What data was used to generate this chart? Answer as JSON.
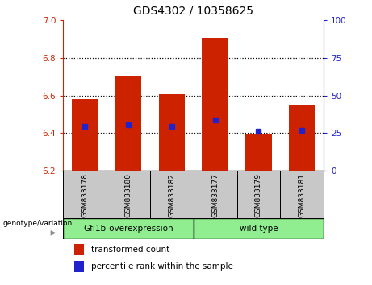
{
  "title": "GDS4302 / 10358625",
  "samples": [
    "GSM833178",
    "GSM833180",
    "GSM833182",
    "GSM833177",
    "GSM833179",
    "GSM833181"
  ],
  "bar_bottom": 6.2,
  "bar_tops": [
    6.58,
    6.7,
    6.605,
    6.905,
    6.395,
    6.545
  ],
  "percentile_values_left": [
    6.435,
    6.445,
    6.435,
    6.47,
    6.41,
    6.415
  ],
  "ylim_left": [
    6.2,
    7.0
  ],
  "ylim_right": [
    0,
    100
  ],
  "yticks_left": [
    6.2,
    6.4,
    6.6,
    6.8,
    7.0
  ],
  "yticks_right": [
    0,
    25,
    50,
    75,
    100
  ],
  "bar_color": "#cc2200",
  "dot_color": "#2222cc",
  "group1_color": "#90ee90",
  "group2_color": "#90ee90",
  "label_bg_color": "#c8c8c8",
  "bar_width": 0.6,
  "grid_color": "#000000",
  "plot_bg": "#ffffff",
  "legend_items": [
    "transformed count",
    "percentile rank within the sample"
  ],
  "genotype_label": "genotype/variation",
  "group1_label": "Gfi1b-overexpression",
  "group2_label": "wild type"
}
